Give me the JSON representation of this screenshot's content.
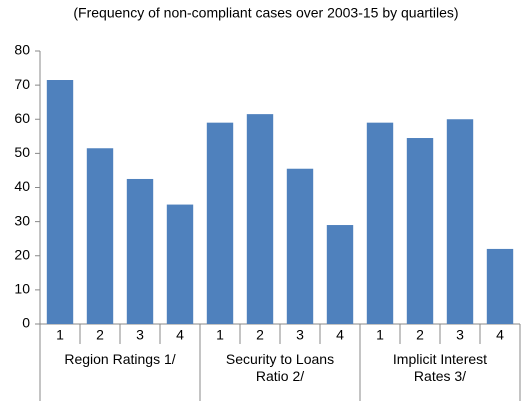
{
  "chart_data": {
    "type": "bar",
    "title": "(Frequency of non-compliant  cases over 2003-15  by quartiles)",
    "groups": [
      {
        "name": "Region Ratings 1/",
        "categories": [
          "1",
          "2",
          "3",
          "4"
        ],
        "values": [
          71.5,
          51.5,
          42.5,
          35
        ]
      },
      {
        "name": "Security to Loans Ratio 2/",
        "categories": [
          "1",
          "2",
          "3",
          "4"
        ],
        "values": [
          59,
          61.5,
          45.5,
          29
        ]
      },
      {
        "name": "Implicit Interest Rates 3/",
        "categories": [
          "1",
          "2",
          "3",
          "4"
        ],
        "values": [
          59,
          54.5,
          60,
          22
        ]
      }
    ],
    "color": "#4f81bd",
    "ylim": [
      0,
      80
    ],
    "yticks": [
      0,
      10,
      20,
      30,
      40,
      50,
      60,
      70,
      80
    ],
    "grid": false
  }
}
